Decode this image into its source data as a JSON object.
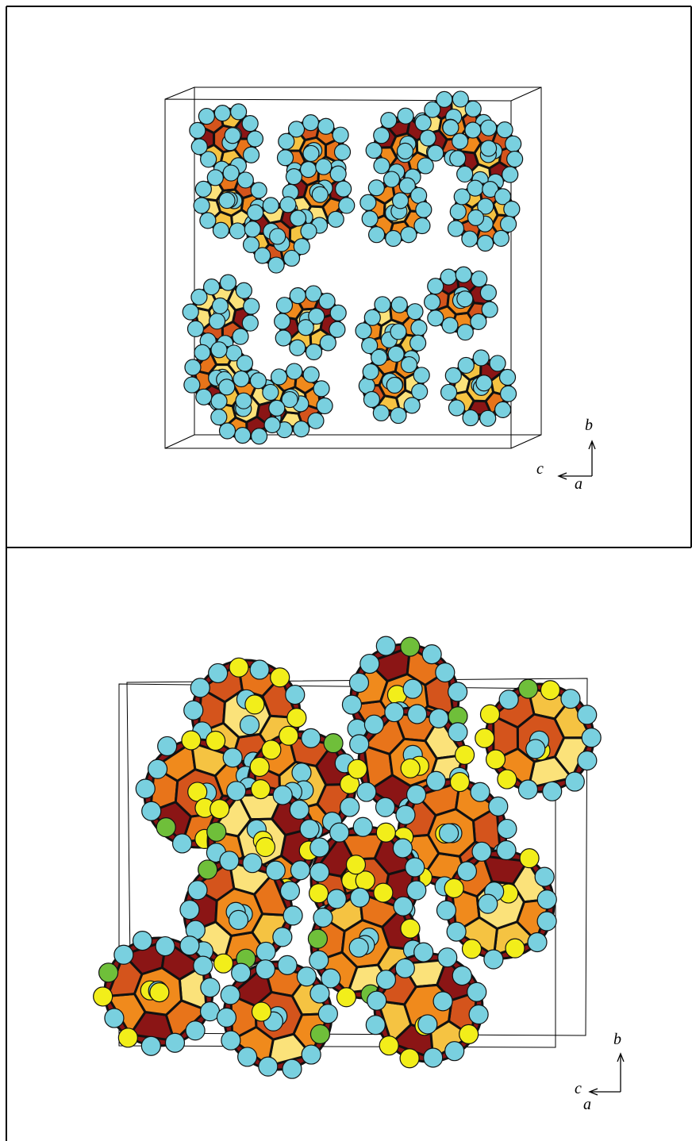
{
  "panels": [
    {
      "axis_labels": {
        "vertical": "b",
        "horizontal": "c",
        "depth": "a"
      }
    },
    {
      "axis_labels": {
        "vertical": "b",
        "horizontal": "c",
        "depth": "a"
      }
    }
  ]
}
